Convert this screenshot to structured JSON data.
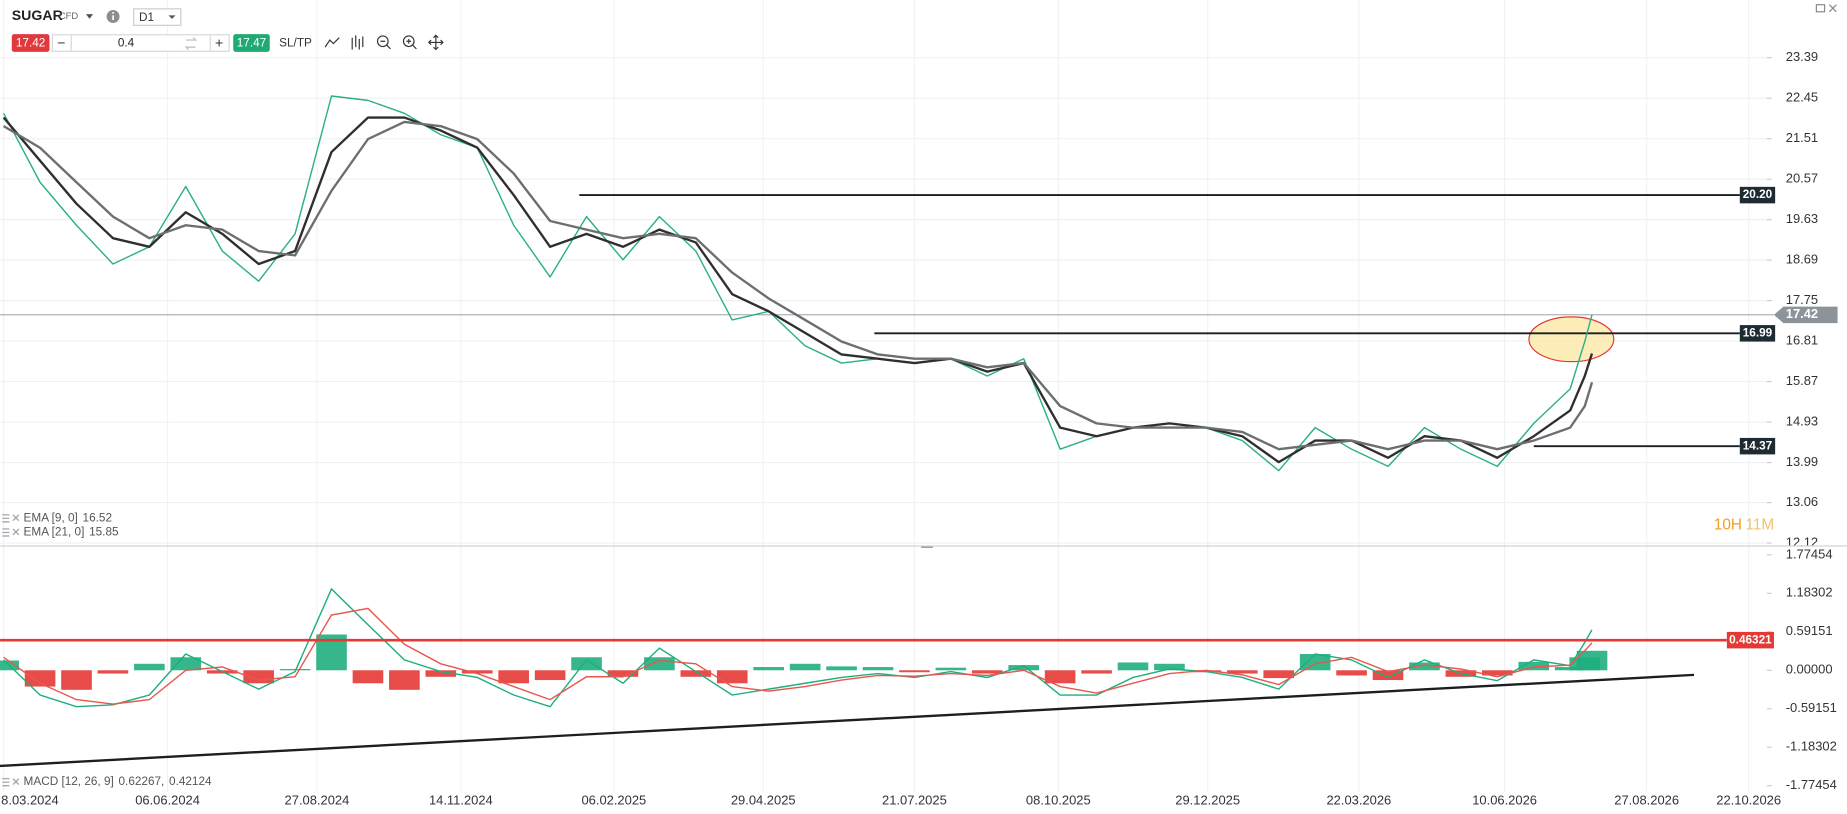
{
  "toolbar": {
    "symbol": "SUGAR",
    "tag": "CFD",
    "timeframe": "D1",
    "sell": "17.42",
    "minus": "−",
    "quantity": "0.4",
    "plus": "+",
    "buy": "17.47",
    "sltp": "SL/TP"
  },
  "chart_data": [
    {
      "type": "line",
      "x": [
        "08.03.2024",
        "28.03.2024",
        "17.04.2024",
        "07.05.2024",
        "27.05.2024",
        "16.06.2024",
        "06.07.2024",
        "26.07.2024",
        "15.08.2024",
        "04.09.2024",
        "24.09.2024",
        "14.10.2024",
        "03.11.2024",
        "23.11.2024",
        "13.12.2024",
        "02.01.2025",
        "22.01.2025",
        "11.02.2025",
        "03.03.2025",
        "23.03.2025",
        "12.04.2025",
        "02.05.2025",
        "22.05.2025",
        "11.06.2025",
        "01.07.2025",
        "21.07.2025",
        "10.08.2025",
        "30.08.2025",
        "19.09.2025",
        "09.10.2025",
        "29.10.2025",
        "18.11.2025",
        "08.12.2025",
        "28.12.2025",
        "17.01.2026",
        "06.02.2026",
        "26.02.2026",
        "18.03.2026",
        "07.04.2026",
        "27.04.2026",
        "17.05.2026",
        "06.06.2026",
        "26.06.2026",
        "16.07.2026",
        "24.07.2026",
        "28.07.2026"
      ],
      "series": [
        {
          "color": "#2bb086",
          "values": [
            22.1,
            20.5,
            19.5,
            18.6,
            19.0,
            20.4,
            18.9,
            18.2,
            19.3,
            22.5,
            22.4,
            22.1,
            21.6,
            21.3,
            19.5,
            18.3,
            19.7,
            18.7,
            19.7,
            18.9,
            17.3,
            17.5,
            16.7,
            16.3,
            16.4,
            16.3,
            16.4,
            16.0,
            16.4,
            14.3,
            14.6,
            14.8,
            14.9,
            14.8,
            14.5,
            13.8,
            14.8,
            14.3,
            13.9,
            14.8,
            14.3,
            13.9,
            14.9,
            15.7,
            16.8,
            17.42
          ]
        },
        {
          "name": "EMA [9, 0]",
          "color": "#2f2f2f",
          "values": [
            22.0,
            21.0,
            20.0,
            19.2,
            19.0,
            19.8,
            19.3,
            18.6,
            18.9,
            21.2,
            22.0,
            22.0,
            21.7,
            21.3,
            20.2,
            19.0,
            19.3,
            19.0,
            19.4,
            19.1,
            17.9,
            17.5,
            17.0,
            16.5,
            16.4,
            16.3,
            16.4,
            16.1,
            16.3,
            14.8,
            14.6,
            14.8,
            14.9,
            14.8,
            14.6,
            14.0,
            14.5,
            14.5,
            14.1,
            14.6,
            14.5,
            14.1,
            14.6,
            15.2,
            16.0,
            16.52
          ]
        },
        {
          "name": "EMA [21, 0]",
          "color": "#6b6f73",
          "values": [
            21.8,
            21.3,
            20.5,
            19.7,
            19.2,
            19.5,
            19.4,
            18.9,
            18.8,
            20.3,
            21.5,
            21.9,
            21.8,
            21.5,
            20.7,
            19.6,
            19.4,
            19.2,
            19.3,
            19.2,
            18.4,
            17.8,
            17.3,
            16.8,
            16.5,
            16.4,
            16.4,
            16.2,
            16.3,
            15.3,
            14.9,
            14.8,
            14.8,
            14.8,
            14.7,
            14.3,
            14.4,
            14.5,
            14.3,
            14.5,
            14.5,
            14.3,
            14.5,
            14.8,
            15.3,
            15.85
          ]
        }
      ],
      "xlim": [
        "06.03.2024",
        "01.11.2026"
      ],
      "xticks": [
        "8.03.2024",
        "06.06.2024",
        "27.08.2024",
        "14.11.2024",
        "06.02.2025",
        "29.04.2025",
        "21.07.2025",
        "08.10.2025",
        "29.12.2025",
        "22.03.2026",
        "10.06.2026",
        "27.08.2026",
        "22.10.2026"
      ],
      "ylim": [
        12.12,
        23.39
      ],
      "yticks": [
        23.39,
        22.45,
        21.51,
        20.57,
        19.63,
        18.69,
        17.75,
        16.81,
        15.87,
        14.93,
        13.99,
        13.06,
        12.12
      ],
      "grid": true,
      "hlines": [
        {
          "value": 20.2,
          "label": "20.20",
          "start": "18.01.2025"
        },
        {
          "value": 16.99,
          "label": "16.99",
          "start": "29.06.2025"
        },
        {
          "value": 14.37,
          "label": "14.37",
          "start": "26.06.2026"
        }
      ],
      "current": 17.42,
      "countdown": [
        "10H",
        "11M"
      ]
    },
    {
      "type": "macd",
      "legend": "MACD [12, 26, 9]",
      "legend_separator": ",",
      "x": [
        "08.03.2024",
        "28.03.2024",
        "17.04.2024",
        "07.05.2024",
        "27.05.2024",
        "16.06.2024",
        "06.07.2024",
        "26.07.2024",
        "15.08.2024",
        "04.09.2024",
        "24.09.2024",
        "14.10.2024",
        "03.11.2024",
        "23.11.2024",
        "13.12.2024",
        "02.01.2025",
        "22.01.2025",
        "11.02.2025",
        "03.03.2025",
        "23.03.2025",
        "12.04.2025",
        "02.05.2025",
        "22.05.2025",
        "11.06.2025",
        "01.07.2025",
        "21.07.2025",
        "10.08.2025",
        "30.08.2025",
        "19.09.2025",
        "09.10.2025",
        "29.10.2025",
        "18.11.2025",
        "08.12.2025",
        "28.12.2025",
        "17.01.2026",
        "06.02.2026",
        "26.02.2026",
        "18.03.2026",
        "07.04.2026",
        "27.04.2026",
        "17.05.2026",
        "06.06.2026",
        "26.06.2026",
        "16.07.2026",
        "24.07.2026",
        "28.07.2026"
      ],
      "histogram": {
        "up_color": "#1fae7e",
        "down_color": "#e53935",
        "values": [
          0.15,
          -0.25,
          -0.3,
          -0.05,
          0.1,
          0.2,
          -0.05,
          -0.2,
          0.02,
          0.55,
          -0.2,
          -0.3,
          -0.1,
          -0.05,
          -0.2,
          -0.15,
          0.2,
          -0.1,
          0.2,
          -0.1,
          -0.2,
          0.05,
          0.1,
          0.06,
          0.05,
          -0.03,
          0.04,
          -0.05,
          0.08,
          -0.2,
          -0.05,
          0.12,
          0.1,
          -0.03,
          -0.05,
          -0.12,
          0.25,
          -0.08,
          -0.15,
          0.12,
          -0.1,
          -0.08,
          0.13,
          0.05,
          0.2,
          0.3
        ]
      },
      "series": [
        {
          "color": "#1fae7e",
          "values": [
            0.16,
            -0.38,
            -0.56,
            -0.53,
            -0.38,
            0.25,
            -0.02,
            -0.29,
            -0.02,
            1.25,
            0.7,
            0.16,
            -0.02,
            -0.11,
            -0.38,
            -0.56,
            0.16,
            -0.2,
            0.34,
            -0.02,
            -0.38,
            -0.29,
            -0.2,
            -0.11,
            -0.05,
            -0.11,
            -0.02,
            -0.11,
            0.07,
            -0.38,
            -0.38,
            -0.11,
            0.02,
            -0.02,
            -0.11,
            -0.29,
            0.25,
            0.16,
            -0.11,
            0.16,
            -0.05,
            -0.16,
            0.16,
            0.07,
            0.43,
            0.62267
          ]
        },
        {
          "color": "#e8574f",
          "values": [
            0.2,
            -0.2,
            -0.45,
            -0.52,
            -0.45,
            0.0,
            0.05,
            -0.15,
            -0.1,
            0.85,
            0.95,
            0.4,
            0.1,
            -0.05,
            -0.25,
            -0.45,
            -0.1,
            -0.1,
            0.15,
            0.1,
            -0.25,
            -0.32,
            -0.25,
            -0.15,
            -0.08,
            -0.09,
            -0.05,
            -0.08,
            0.0,
            -0.25,
            -0.35,
            -0.2,
            -0.05,
            0.0,
            -0.07,
            -0.22,
            0.1,
            0.2,
            -0.02,
            0.08,
            0.02,
            -0.1,
            0.05,
            0.08,
            0.3,
            0.42124
          ]
        }
      ],
      "xlim": [
        "06.03.2024",
        "01.11.2026"
      ],
      "ylim": [
        -1.77454,
        1.77454
      ],
      "yticks": [
        1.77454,
        1.18302,
        0.59151,
        {
          "value": 0,
          "label": "0.00000"
        },
        -0.59151,
        -1.18302,
        -1.77454
      ],
      "hline": {
        "value": 0.46321,
        "label": "0.46321",
        "color": "#e53935"
      },
      "trendline": {
        "x": [
          "06.03.2024",
          "22.09.2026"
        ],
        "values": [
          -1.47,
          -0.07
        ]
      }
    }
  ]
}
